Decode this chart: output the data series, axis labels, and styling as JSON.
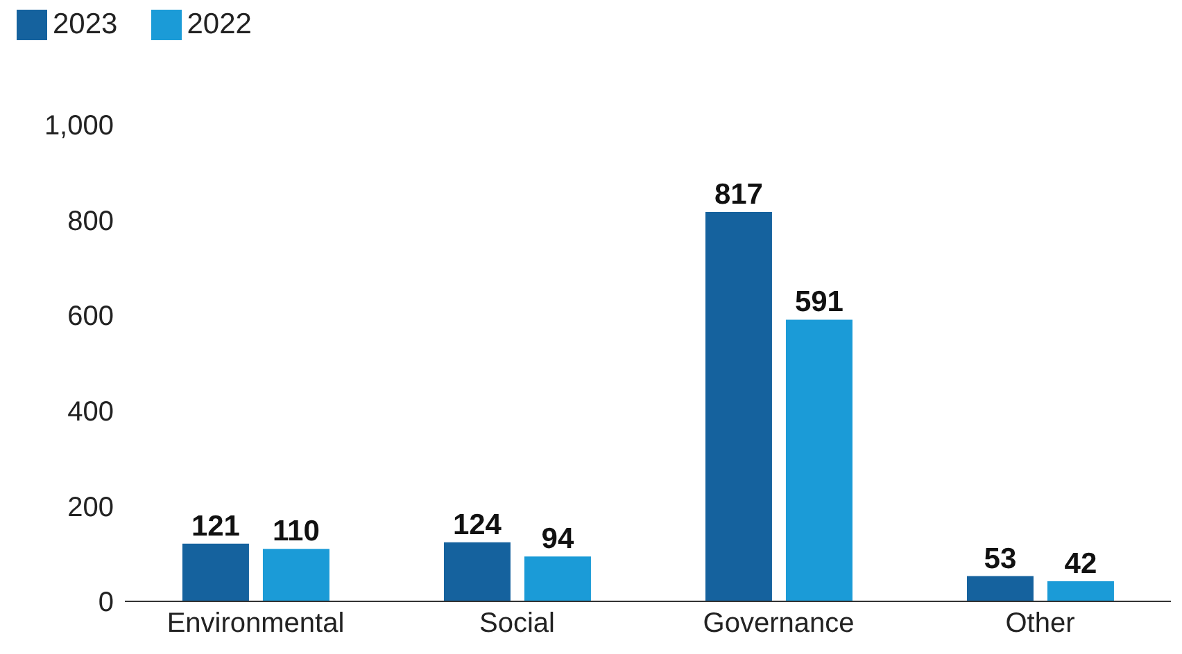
{
  "chart_data": {
    "type": "bar",
    "categories": [
      "Environmental",
      "Social",
      "Governance",
      "Other"
    ],
    "series": [
      {
        "name": "2023",
        "color": "#15629e",
        "values": [
          121,
          124,
          817,
          53
        ]
      },
      {
        "name": "2022",
        "color": "#1b9bd7",
        "values": [
          110,
          94,
          591,
          42
        ]
      }
    ],
    "ylim": [
      0,
      1000
    ],
    "yticks": [
      0,
      200,
      400,
      600,
      800,
      {
        "value": 1000,
        "label": "1,000"
      }
    ],
    "grid": false,
    "legend": "top left",
    "data_labels": true
  }
}
